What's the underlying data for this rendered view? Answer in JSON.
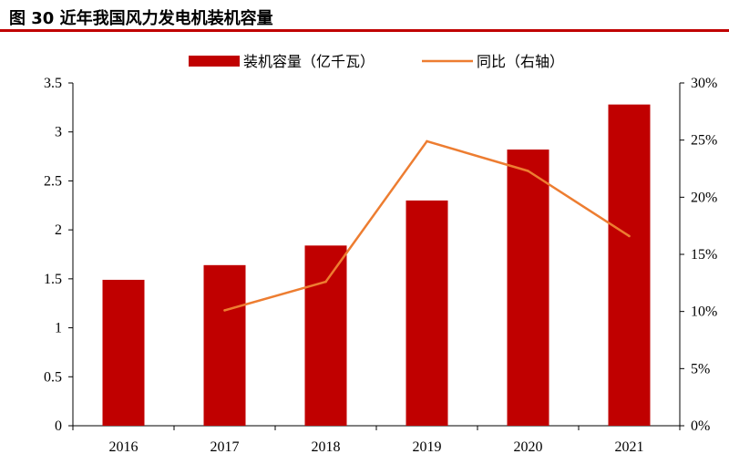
{
  "page_title": "图 30 近年我国风力发电机装机容量",
  "colors": {
    "bar": "#c00000",
    "line": "#ed7d31",
    "accent": "#c00000"
  },
  "chart_data": {
    "type": "bar",
    "categories": [
      "2016",
      "2017",
      "2018",
      "2019",
      "2020",
      "2021"
    ],
    "series": [
      {
        "name": "装机容量（亿千瓦）",
        "kind": "bar",
        "axis": "left",
        "values": [
          1.49,
          1.64,
          1.84,
          2.3,
          2.82,
          3.28
        ]
      },
      {
        "name": "同比（右轴）",
        "kind": "line",
        "axis": "right",
        "values": [
          null,
          10.1,
          12.6,
          24.9,
          22.3,
          16.6
        ]
      }
    ],
    "ylim_left": [
      0,
      3.5
    ],
    "ylim_right": [
      0,
      30
    ],
    "left_ticks": [
      "0",
      "0.5",
      "1",
      "1.5",
      "2",
      "2.5",
      "3",
      "3.5"
    ],
    "right_ticks": [
      "0%",
      "5%",
      "10%",
      "15%",
      "20%",
      "25%",
      "30%"
    ],
    "legend_position": "top",
    "grid": false
  }
}
